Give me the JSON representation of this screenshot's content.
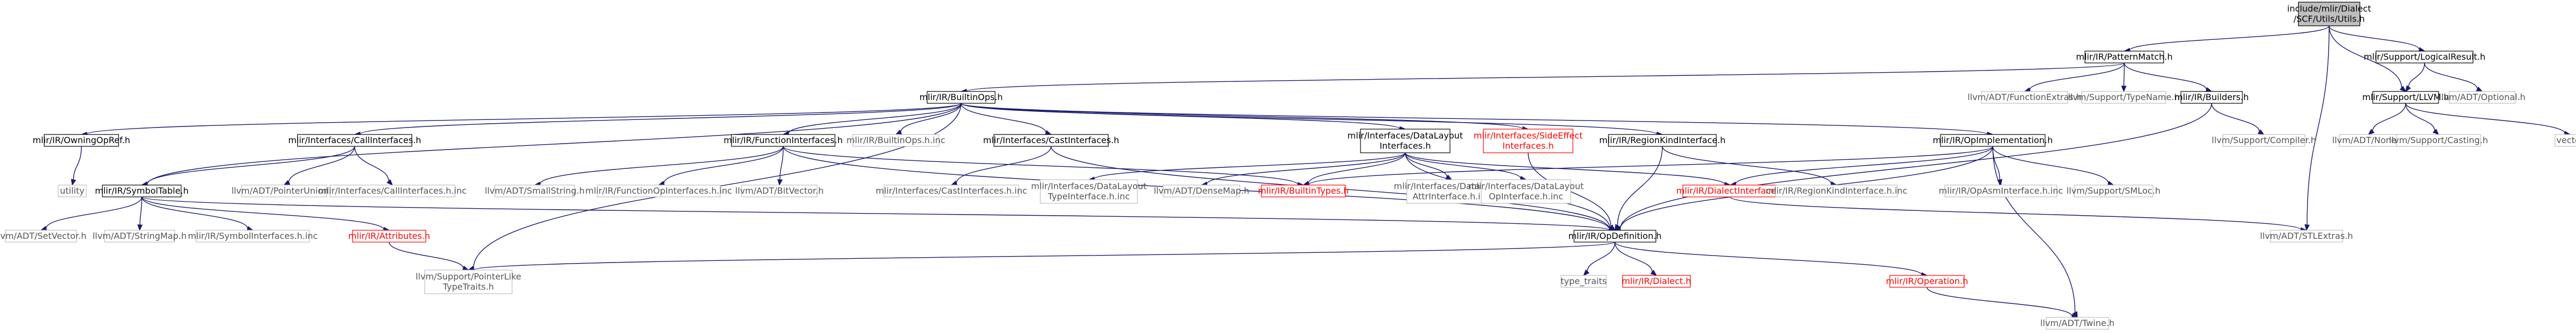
{
  "graph": {
    "colors": {
      "edge": "#191970",
      "root_fill": "#bfbfbf",
      "leaf_border": "#bfbfbf",
      "truncated_text": "#ff0000",
      "node_border": "#000000"
    },
    "nodes": [
      {
        "id": "root",
        "lines": [
          "include/mlir/Dialect",
          "/SCF/Utils/Utils.h"
        ],
        "kind": "root"
      },
      {
        "id": "patternmatch",
        "lines": [
          "mlir/IR/PatternMatch.h"
        ],
        "kind": "normal"
      },
      {
        "id": "logicalresult",
        "lines": [
          "mlir/Support/LogicalResult.h"
        ],
        "kind": "normal"
      },
      {
        "id": "builtinops",
        "lines": [
          "mlir/IR/BuiltinOps.h"
        ],
        "kind": "normal"
      },
      {
        "id": "functionextras",
        "lines": [
          "llvm/ADT/FunctionExtras.h"
        ],
        "kind": "leaf"
      },
      {
        "id": "typename",
        "lines": [
          "llvm/Support/TypeName.h"
        ],
        "kind": "leaf"
      },
      {
        "id": "builders",
        "lines": [
          "mlir/IR/Builders.h"
        ],
        "kind": "normal"
      },
      {
        "id": "supportllvm",
        "lines": [
          "mlir/Support/LLVM.h"
        ],
        "kind": "normal"
      },
      {
        "id": "optional",
        "lines": [
          "llvm/ADT/Optional.h"
        ],
        "kind": "leaf"
      },
      {
        "id": "owningopref",
        "lines": [
          "mlir/IR/OwningOpRef.h"
        ],
        "kind": "normal"
      },
      {
        "id": "callinterfaces",
        "lines": [
          "mlir/Interfaces/CallInterfaces.h"
        ],
        "kind": "normal"
      },
      {
        "id": "functioninterfaces",
        "lines": [
          "mlir/IR/FunctionInterfaces.h"
        ],
        "kind": "normal"
      },
      {
        "id": "builtinopsinc",
        "lines": [
          "mlir/IR/BuiltinOps.h.inc"
        ],
        "kind": "leaf"
      },
      {
        "id": "castinterfaces",
        "lines": [
          "mlir/Interfaces/CastInterfaces.h"
        ],
        "kind": "normal"
      },
      {
        "id": "datalayoutinterfaces",
        "lines": [
          "mlir/Interfaces/DataLayout",
          "Interfaces.h"
        ],
        "kind": "normal"
      },
      {
        "id": "sideeffectinterfaces",
        "lines": [
          "mlir/Interfaces/SideEffect",
          "Interfaces.h"
        ],
        "kind": "trunc"
      },
      {
        "id": "regionkindinterface",
        "lines": [
          "mlir/IR/RegionKindInterface.h"
        ],
        "kind": "normal"
      },
      {
        "id": "opimplementation",
        "lines": [
          "mlir/IR/OpImplementation.h"
        ],
        "kind": "normal"
      },
      {
        "id": "compiler",
        "lines": [
          "llvm/Support/Compiler.h"
        ],
        "kind": "leaf"
      },
      {
        "id": "none",
        "lines": [
          "llvm/ADT/None.h"
        ],
        "kind": "leaf"
      },
      {
        "id": "casting",
        "lines": [
          "llvm/Support/Casting.h"
        ],
        "kind": "leaf"
      },
      {
        "id": "vector",
        "lines": [
          "vector"
        ],
        "kind": "leaf"
      },
      {
        "id": "utility",
        "lines": [
          "utility"
        ],
        "kind": "leaf"
      },
      {
        "id": "symboltable",
        "lines": [
          "mlir/IR/SymbolTable.h"
        ],
        "kind": "normal"
      },
      {
        "id": "pointerunion",
        "lines": [
          "llvm/ADT/PointerUnion.h"
        ],
        "kind": "leaf"
      },
      {
        "id": "callinterfacesinc",
        "lines": [
          "mlir/Interfaces/CallInterfaces.h.inc"
        ],
        "kind": "leaf"
      },
      {
        "id": "smallstring",
        "lines": [
          "llvm/ADT/SmallString.h"
        ],
        "kind": "leaf"
      },
      {
        "id": "functionopinterfacesinc",
        "lines": [
          "mlir/IR/FunctionOpInterfaces.h.inc"
        ],
        "kind": "leaf"
      },
      {
        "id": "bitvector",
        "lines": [
          "llvm/ADT/BitVector.h"
        ],
        "kind": "leaf"
      },
      {
        "id": "castinterfacesinc",
        "lines": [
          "mlir/Interfaces/CastInterfaces.h.inc"
        ],
        "kind": "leaf"
      },
      {
        "id": "dltypeinterfaceinc",
        "lines": [
          "mlir/Interfaces/DataLayout",
          "TypeInterface.h.inc"
        ],
        "kind": "leaf"
      },
      {
        "id": "densemap",
        "lines": [
          "llvm/ADT/DenseMap.h"
        ],
        "kind": "leaf"
      },
      {
        "id": "builtintypes",
        "lines": [
          "mlir/IR/BuiltinTypes.h"
        ],
        "kind": "trunc"
      },
      {
        "id": "dlattrinterfaceinc",
        "lines": [
          "mlir/Interfaces/DataLayout",
          "AttrInterface.h.inc"
        ],
        "kind": "leaf"
      },
      {
        "id": "dlopinterfaceinc",
        "lines": [
          "mlir/Interfaces/DataLayout",
          "OpInterface.h.inc"
        ],
        "kind": "leaf"
      },
      {
        "id": "dialectinterface",
        "lines": [
          "mlir/IR/DialectInterface.h"
        ],
        "kind": "trunc"
      },
      {
        "id": "regionkindinterfaceinc",
        "lines": [
          "mlir/IR/RegionKindInterface.h.inc"
        ],
        "kind": "leaf"
      },
      {
        "id": "opasminterfaceinc",
        "lines": [
          "mlir/IR/OpAsmInterface.h.inc"
        ],
        "kind": "leaf"
      },
      {
        "id": "smloc",
        "lines": [
          "llvm/Support/SMLoc.h"
        ],
        "kind": "leaf"
      },
      {
        "id": "setvector",
        "lines": [
          "llvm/ADT/SetVector.h"
        ],
        "kind": "leaf"
      },
      {
        "id": "stringmap",
        "lines": [
          "llvm/ADT/StringMap.h"
        ],
        "kind": "leaf"
      },
      {
        "id": "symbolinterfacesinc",
        "lines": [
          "mlir/IR/SymbolInterfaces.h.inc"
        ],
        "kind": "leaf"
      },
      {
        "id": "attributes",
        "lines": [
          "mlir/IR/Attributes.h"
        ],
        "kind": "trunc"
      },
      {
        "id": "opdefinition",
        "lines": [
          "mlir/IR/OpDefinition.h"
        ],
        "kind": "normal"
      },
      {
        "id": "stlextras",
        "lines": [
          "llvm/ADT/STLExtras.h"
        ],
        "kind": "leaf"
      },
      {
        "id": "pointerliketypetraits",
        "lines": [
          "llvm/Support/PointerLike",
          "TypeTraits.h"
        ],
        "kind": "leaf"
      },
      {
        "id": "typetraits",
        "lines": [
          "type_traits"
        ],
        "kind": "leaf"
      },
      {
        "id": "dialect",
        "lines": [
          "mlir/IR/Dialect.h"
        ],
        "kind": "trunc"
      },
      {
        "id": "operation",
        "lines": [
          "mlir/IR/Operation.h"
        ],
        "kind": "trunc"
      },
      {
        "id": "twine",
        "lines": [
          "llvm/ADT/Twine.h"
        ],
        "kind": "leaf"
      }
    ],
    "edges": [
      [
        "root",
        "patternmatch"
      ],
      [
        "root",
        "logicalresult"
      ],
      [
        "root",
        "supportllvm"
      ],
      [
        "root",
        "stlextras"
      ],
      [
        "patternmatch",
        "builtinops"
      ],
      [
        "patternmatch",
        "functionextras"
      ],
      [
        "patternmatch",
        "typename"
      ],
      [
        "patternmatch",
        "builders"
      ],
      [
        "logicalresult",
        "supportllvm"
      ],
      [
        "logicalresult",
        "optional"
      ],
      [
        "builders",
        "compiler"
      ],
      [
        "builders",
        "opdefinition"
      ],
      [
        "supportllvm",
        "none"
      ],
      [
        "supportllvm",
        "casting"
      ],
      [
        "supportllvm",
        "vector"
      ],
      [
        "builtinops",
        "owningopref"
      ],
      [
        "builtinops",
        "callinterfaces"
      ],
      [
        "builtinops",
        "functioninterfaces"
      ],
      [
        "builtinops",
        "builtinopsinc"
      ],
      [
        "builtinops",
        "castinterfaces"
      ],
      [
        "builtinops",
        "datalayoutinterfaces"
      ],
      [
        "builtinops",
        "sideeffectinterfaces"
      ],
      [
        "builtinops",
        "regionkindinterface"
      ],
      [
        "builtinops",
        "opimplementation"
      ],
      [
        "builtinops",
        "symboltable"
      ],
      [
        "builtinops",
        "pointerliketypetraits"
      ],
      [
        "owningopref",
        "utility"
      ],
      [
        "callinterfaces",
        "symboltable"
      ],
      [
        "callinterfaces",
        "pointerunion"
      ],
      [
        "callinterfaces",
        "callinterfacesinc"
      ],
      [
        "functioninterfaces",
        "smallstring"
      ],
      [
        "functioninterfaces",
        "functionopinterfacesinc"
      ],
      [
        "functioninterfaces",
        "bitvector"
      ],
      [
        "functioninterfaces",
        "builtintypes"
      ],
      [
        "functioninterfaces",
        "opdefinition"
      ],
      [
        "castinterfaces",
        "castinterfacesinc"
      ],
      [
        "castinterfaces",
        "opdefinition"
      ],
      [
        "datalayoutinterfaces",
        "dltypeinterfaceinc"
      ],
      [
        "datalayoutinterfaces",
        "densemap"
      ],
      [
        "datalayoutinterfaces",
        "builtintypes"
      ],
      [
        "datalayoutinterfaces",
        "dlattrinterfaceinc"
      ],
      [
        "datalayoutinterfaces",
        "dlopinterfaceinc"
      ],
      [
        "datalayoutinterfaces",
        "dialectinterface"
      ],
      [
        "datalayoutinterfaces",
        "opdefinition"
      ],
      [
        "sideeffectinterfaces",
        "opdefinition"
      ],
      [
        "regionkindinterface",
        "regionkindinterfaceinc"
      ],
      [
        "regionkindinterface",
        "opdefinition"
      ],
      [
        "opimplementation",
        "dialectinterface"
      ],
      [
        "opimplementation",
        "builtintypes"
      ],
      [
        "opimplementation",
        "opasminterfaceinc"
      ],
      [
        "opimplementation",
        "smloc"
      ],
      [
        "opimplementation",
        "opdefinition"
      ],
      [
        "opimplementation",
        "twine"
      ],
      [
        "symboltable",
        "setvector"
      ],
      [
        "symboltable",
        "stringmap"
      ],
      [
        "symboltable",
        "symbolinterfacesinc"
      ],
      [
        "symboltable",
        "attributes"
      ],
      [
        "symboltable",
        "opdefinition"
      ],
      [
        "attributes",
        "pointerliketypetraits"
      ],
      [
        "dialectinterface",
        "stlextras"
      ],
      [
        "opdefinition",
        "pointerliketypetraits"
      ],
      [
        "opdefinition",
        "typetraits"
      ],
      [
        "opdefinition",
        "dialect"
      ],
      [
        "opdefinition",
        "operation"
      ],
      [
        "operation",
        "twine"
      ]
    ]
  }
}
